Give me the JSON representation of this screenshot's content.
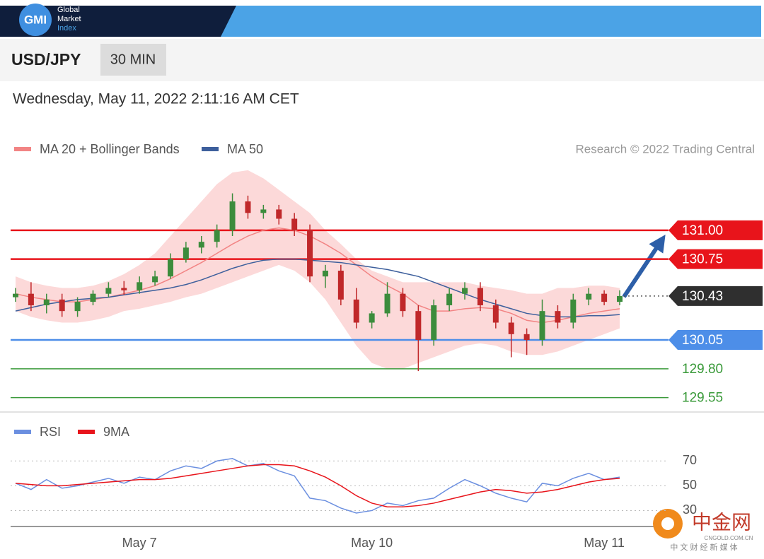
{
  "header": {
    "logo": "GMI",
    "brand_lines": [
      "Global",
      "Market",
      "Index"
    ],
    "symbol": "USD/JPY",
    "interval": "30 MIN",
    "timestamp": "Wednesday, May 11, 2022 2:11:16 AM CET"
  },
  "watermark": {
    "title": "中金网",
    "site": "CNGOLD.COM.CN",
    "tagline": "中 文 财 经 新 媒 体"
  },
  "chart_data": [
    {
      "type": "candlestick",
      "credit": "Research © 2022 Trading Central",
      "categories": [
        null,
        null,
        null,
        null,
        null,
        null,
        null,
        null,
        "May 7",
        null,
        null,
        null,
        null,
        null,
        null,
        null,
        null,
        null,
        null,
        null,
        null,
        null,
        null,
        "May 10",
        null,
        null,
        null,
        null,
        null,
        null,
        null,
        null,
        null,
        null,
        null,
        null,
        null,
        null,
        "May 11",
        null
      ],
      "ylim": [
        129.45,
        131.55
      ],
      "candles": {
        "open": [
          130.42,
          130.45,
          130.35,
          130.4,
          130.3,
          130.38,
          130.45,
          130.5,
          130.48,
          130.55,
          130.6,
          130.75,
          130.85,
          130.9,
          131.0,
          131.25,
          131.15,
          131.18,
          131.1,
          131.0,
          130.6,
          130.65,
          130.4,
          130.2,
          130.28,
          130.45,
          130.3,
          130.05,
          130.35,
          130.45,
          130.5,
          130.35,
          130.2,
          130.1,
          130.05,
          130.3,
          130.2,
          130.4,
          130.45,
          130.38
        ],
        "high": [
          130.5,
          130.55,
          130.45,
          130.45,
          130.42,
          130.48,
          130.55,
          130.56,
          130.6,
          130.65,
          130.8,
          130.9,
          130.95,
          131.05,
          131.32,
          131.3,
          131.22,
          131.22,
          131.15,
          131.05,
          130.7,
          130.7,
          130.5,
          130.3,
          130.55,
          130.5,
          130.35,
          130.4,
          130.5,
          130.55,
          130.55,
          130.4,
          130.25,
          130.15,
          130.4,
          130.35,
          130.45,
          130.5,
          130.48,
          130.48
        ],
        "low": [
          130.38,
          130.3,
          130.28,
          130.25,
          130.25,
          130.35,
          130.42,
          130.44,
          130.45,
          130.52,
          130.58,
          130.72,
          130.8,
          130.85,
          130.95,
          131.1,
          131.1,
          131.05,
          130.95,
          130.55,
          130.5,
          130.35,
          130.15,
          130.15,
          130.25,
          130.25,
          129.78,
          130.0,
          130.3,
          130.4,
          130.3,
          130.15,
          129.9,
          129.92,
          130.0,
          130.15,
          130.15,
          130.35,
          130.35,
          130.35
        ],
        "close": [
          130.45,
          130.35,
          130.4,
          130.3,
          130.38,
          130.45,
          130.5,
          130.48,
          130.55,
          130.6,
          130.75,
          130.85,
          130.9,
          131.0,
          131.25,
          131.15,
          131.18,
          131.1,
          131.0,
          130.6,
          130.65,
          130.4,
          130.2,
          130.28,
          130.45,
          130.3,
          130.05,
          130.35,
          130.45,
          130.5,
          130.35,
          130.2,
          130.1,
          130.05,
          130.3,
          130.2,
          130.4,
          130.45,
          130.38,
          130.43
        ],
        "up_color": "#3c8c3c",
        "down_color": "#c0282a"
      },
      "bollinger": {
        "upper": [
          130.6,
          130.55,
          130.52,
          130.5,
          130.5,
          130.52,
          130.56,
          130.62,
          130.7,
          130.8,
          130.95,
          131.1,
          131.25,
          131.4,
          131.5,
          131.52,
          131.45,
          131.35,
          131.25,
          131.15,
          131.0,
          130.88,
          130.75,
          130.65,
          130.6,
          130.55,
          130.55,
          130.55,
          130.55,
          130.55,
          130.52,
          130.5,
          130.48,
          130.45,
          130.45,
          130.5,
          130.5,
          130.52,
          130.52,
          130.5
        ],
        "lower": [
          130.3,
          130.25,
          130.22,
          130.2,
          130.2,
          130.22,
          130.25,
          130.3,
          130.32,
          130.35,
          130.38,
          130.42,
          130.45,
          130.5,
          130.55,
          130.6,
          130.65,
          130.7,
          130.65,
          130.55,
          130.4,
          130.2,
          130.0,
          129.85,
          129.8,
          129.8,
          129.85,
          129.9,
          129.95,
          130.0,
          130.02,
          130.0,
          129.95,
          129.92,
          129.92,
          129.95,
          130.0,
          130.05,
          130.1,
          130.15
        ],
        "color": "#fcd9d9"
      },
      "series": [
        {
          "name": "MA 20 + Bollinger Bands",
          "color": "#f28484",
          "values": [
            130.45,
            130.42,
            130.4,
            130.38,
            130.38,
            130.4,
            130.42,
            130.45,
            130.48,
            130.52,
            130.58,
            130.65,
            130.72,
            130.8,
            130.88,
            130.95,
            131.0,
            131.02,
            131.0,
            130.95,
            130.88,
            130.8,
            130.7,
            130.6,
            130.52,
            130.45,
            130.35,
            130.3,
            130.3,
            130.32,
            130.33,
            130.32,
            130.28,
            130.22,
            130.2,
            130.22,
            130.25,
            130.28,
            130.3,
            130.32
          ]
        },
        {
          "name": "MA 50",
          "color": "#3d5f9c",
          "values": [
            130.3,
            130.33,
            130.36,
            130.38,
            130.4,
            130.41,
            130.42,
            130.44,
            130.46,
            130.48,
            130.5,
            130.53,
            130.57,
            130.62,
            130.67,
            130.71,
            130.74,
            130.75,
            130.75,
            130.74,
            130.73,
            130.72,
            130.7,
            130.68,
            130.66,
            130.63,
            130.6,
            130.55,
            130.5,
            130.45,
            130.4,
            130.36,
            130.32,
            130.28,
            130.26,
            130.25,
            130.25,
            130.26,
            130.26,
            130.27
          ]
        }
      ],
      "levels": [
        {
          "value": 131,
          "label": "131.00",
          "color": "#e8141b",
          "style": "box"
        },
        {
          "value": 130.75,
          "color": "#e8141b",
          "style": "box"
        },
        {
          "value": 130.43,
          "color": "#2f2f2f",
          "style": "current"
        },
        {
          "value": 130.05,
          "color": "#4d8ee8",
          "style": "box"
        },
        {
          "value": 129.8,
          "label": "129.80",
          "color": "#3a9a3a",
          "style": "text"
        },
        {
          "value": 129.55,
          "color": "#3a9a3a",
          "style": "text"
        }
      ]
    },
    {
      "type": "line",
      "ylim": [
        20,
        77
      ],
      "yticks": [
        70,
        50,
        30
      ],
      "series": [
        {
          "name": "RSI",
          "color": "#6b8fe0",
          "values": [
            52,
            47,
            55,
            48,
            50,
            53,
            56,
            52,
            57,
            55,
            62,
            66,
            64,
            70,
            72,
            66,
            68,
            62,
            58,
            40,
            38,
            32,
            28,
            30,
            36,
            34,
            38,
            40,
            48,
            55,
            50,
            44,
            40,
            37,
            52,
            50,
            56,
            60,
            55,
            57
          ]
        },
        {
          "name": "9MA",
          "color": "#e8141b",
          "values": [
            52,
            51,
            50,
            50,
            51,
            52,
            53,
            54,
            55,
            55,
            56,
            58,
            60,
            62,
            64,
            66,
            67,
            67,
            66,
            62,
            57,
            50,
            42,
            36,
            33,
            33,
            34,
            36,
            39,
            42,
            45,
            47,
            46,
            44,
            45,
            47,
            50,
            53,
            55,
            56
          ]
        }
      ]
    }
  ]
}
